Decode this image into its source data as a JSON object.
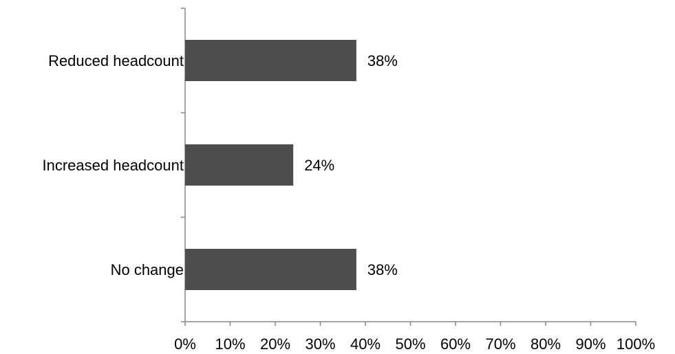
{
  "chart_data": {
    "type": "bar",
    "orientation": "horizontal",
    "categories": [
      "Reduced headcount",
      "Increased headcount",
      "No change"
    ],
    "values": [
      38,
      24,
      38
    ],
    "data_labels": [
      "38%",
      "24%",
      "38%"
    ],
    "xlim": [
      0,
      100
    ],
    "xticks": [
      0,
      10,
      20,
      30,
      40,
      50,
      60,
      70,
      80,
      90,
      100
    ],
    "xtick_labels": [
      "0%",
      "10%",
      "20%",
      "30%",
      "40%",
      "50%",
      "60%",
      "70%",
      "80%",
      "90%",
      "100%"
    ],
    "bar_color": "#4d4d4d",
    "axis_color": "#868686",
    "grid": false,
    "legend": "none"
  }
}
